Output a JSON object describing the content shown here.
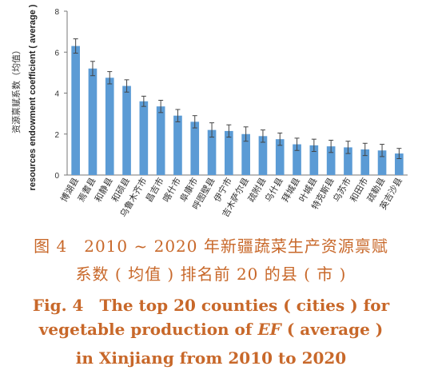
{
  "chart_data": {
    "type": "bar",
    "categories": [
      "博湖县",
      "焉耆县",
      "和静县",
      "和硕县",
      "乌鲁木齐市",
      "昌吉市",
      "喀什市",
      "阜康市",
      "呼图壁县",
      "伊宁市",
      "吉木萨尔县",
      "疏附县",
      "乌什县",
      "拜城县",
      "叶城县",
      "特克斯县",
      "乌苏市",
      "和田市",
      "疏勒县",
      "英吉沙县"
    ],
    "values": [
      6.3,
      5.2,
      4.75,
      4.35,
      3.6,
      3.35,
      2.9,
      2.6,
      2.2,
      2.15,
      2.0,
      1.9,
      1.75,
      1.5,
      1.45,
      1.4,
      1.35,
      1.25,
      1.2,
      1.05
    ],
    "errors": [
      0.35,
      0.35,
      0.3,
      0.3,
      0.25,
      0.3,
      0.3,
      0.3,
      0.35,
      0.3,
      0.35,
      0.3,
      0.3,
      0.3,
      0.3,
      0.3,
      0.3,
      0.3,
      0.3,
      0.25
    ],
    "ylabel_cn": "资源禀赋系数（均值）",
    "ylabel_en": "resources endowment coefficient ( average )",
    "yticks": [
      "0",
      "2",
      "4",
      "6",
      "8"
    ],
    "ylim": [
      0,
      8
    ],
    "bar_color": "#5b9bd5",
    "grid": false
  },
  "caption": {
    "cn_line1": "图 4　2010 ~ 2020 年新疆蔬菜生产资源禀赋",
    "cn_line2": "系数 ( 均值 ) 排名前 20 的县 ( 市 )",
    "en_line1": "Fig. 4　The top 20 counties ( cities ) for",
    "en_line2_pre": "vegetable production of ",
    "en_line2_em": "EF",
    "en_line2_post": " ( average )",
    "en_line3": "in Xinjiang from 2010 to 2020",
    "color": "#c8682a"
  }
}
